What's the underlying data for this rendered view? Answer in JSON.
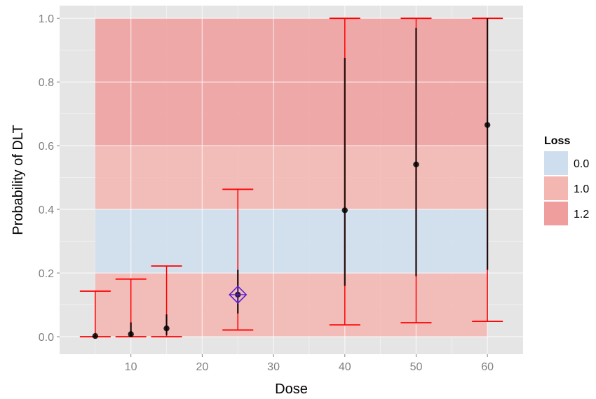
{
  "chart_data": {
    "type": "scatter",
    "xlabel": "Dose",
    "ylabel": "Probability of DLT",
    "xlim": [
      0,
      65
    ],
    "ylim": [
      -0.055,
      1.04
    ],
    "x_ticks": [
      10,
      20,
      30,
      40,
      50,
      60
    ],
    "x_tick_labels": [
      "10",
      "20",
      "30",
      "40",
      "50",
      "60"
    ],
    "y_ticks": [
      0.0,
      0.2,
      0.4,
      0.6,
      0.8,
      1.0
    ],
    "y_tick_labels": [
      "0.0",
      "0.2",
      "0.4",
      "0.6",
      "0.8",
      "1.0"
    ],
    "grid": true,
    "background_color": "#E5E5E5",
    "dose_range": [
      5,
      60
    ],
    "bands": [
      {
        "ymin": 0.0,
        "ymax": 0.2,
        "loss": "1.0",
        "color": "#F4B6B1"
      },
      {
        "ymin": 0.2,
        "ymax": 0.4,
        "loss": "0.0",
        "color": "#CFDEEE"
      },
      {
        "ymin": 0.4,
        "ymax": 0.6,
        "loss": "1.0",
        "color": "#F4B6B1"
      },
      {
        "ymin": 0.6,
        "ymax": 1.0,
        "loss": "1.2",
        "color": "#F09E9D"
      }
    ],
    "legend": {
      "title": "Loss",
      "position": "right",
      "entries": [
        {
          "label": "0.0",
          "color": "#CFDEEE"
        },
        {
          "label": "1.0",
          "color": "#F4B6B1"
        },
        {
          "label": "1.2",
          "color": "#F09E9D"
        }
      ]
    },
    "points": [
      {
        "dose": 5,
        "estimate": 0.002,
        "lower": 0.0,
        "upper": 0.143,
        "inner_lower": 0.0,
        "inner_upper": 0.005
      },
      {
        "dose": 10,
        "estimate": 0.008,
        "lower": 0.0,
        "upper": 0.181,
        "inner_lower": 0.0,
        "inner_upper": 0.045
      },
      {
        "dose": 15,
        "estimate": 0.026,
        "lower": 0.0,
        "upper": 0.222,
        "inner_lower": 0.005,
        "inner_upper": 0.07
      },
      {
        "dose": 25,
        "estimate": 0.132,
        "lower": 0.021,
        "upper": 0.463,
        "inner_lower": 0.073,
        "inner_upper": 0.21
      },
      {
        "dose": 40,
        "estimate": 0.397,
        "lower": 0.037,
        "upper": 1.0,
        "inner_lower": 0.16,
        "inner_upper": 0.875
      },
      {
        "dose": 50,
        "estimate": 0.541,
        "lower": 0.044,
        "upper": 1.0,
        "inner_lower": 0.19,
        "inner_upper": 0.97
      },
      {
        "dose": 60,
        "estimate": 0.665,
        "lower": 0.048,
        "upper": 1.0,
        "inner_lower": 0.21,
        "inner_upper": 1.0
      }
    ],
    "highlighted_dose": 25,
    "colors": {
      "outer_interval": "#FF0000",
      "inner_interval": "#000000",
      "point": "#000000",
      "highlight_marker": "#5A1FD1",
      "grid": "#FFFFFF"
    }
  }
}
